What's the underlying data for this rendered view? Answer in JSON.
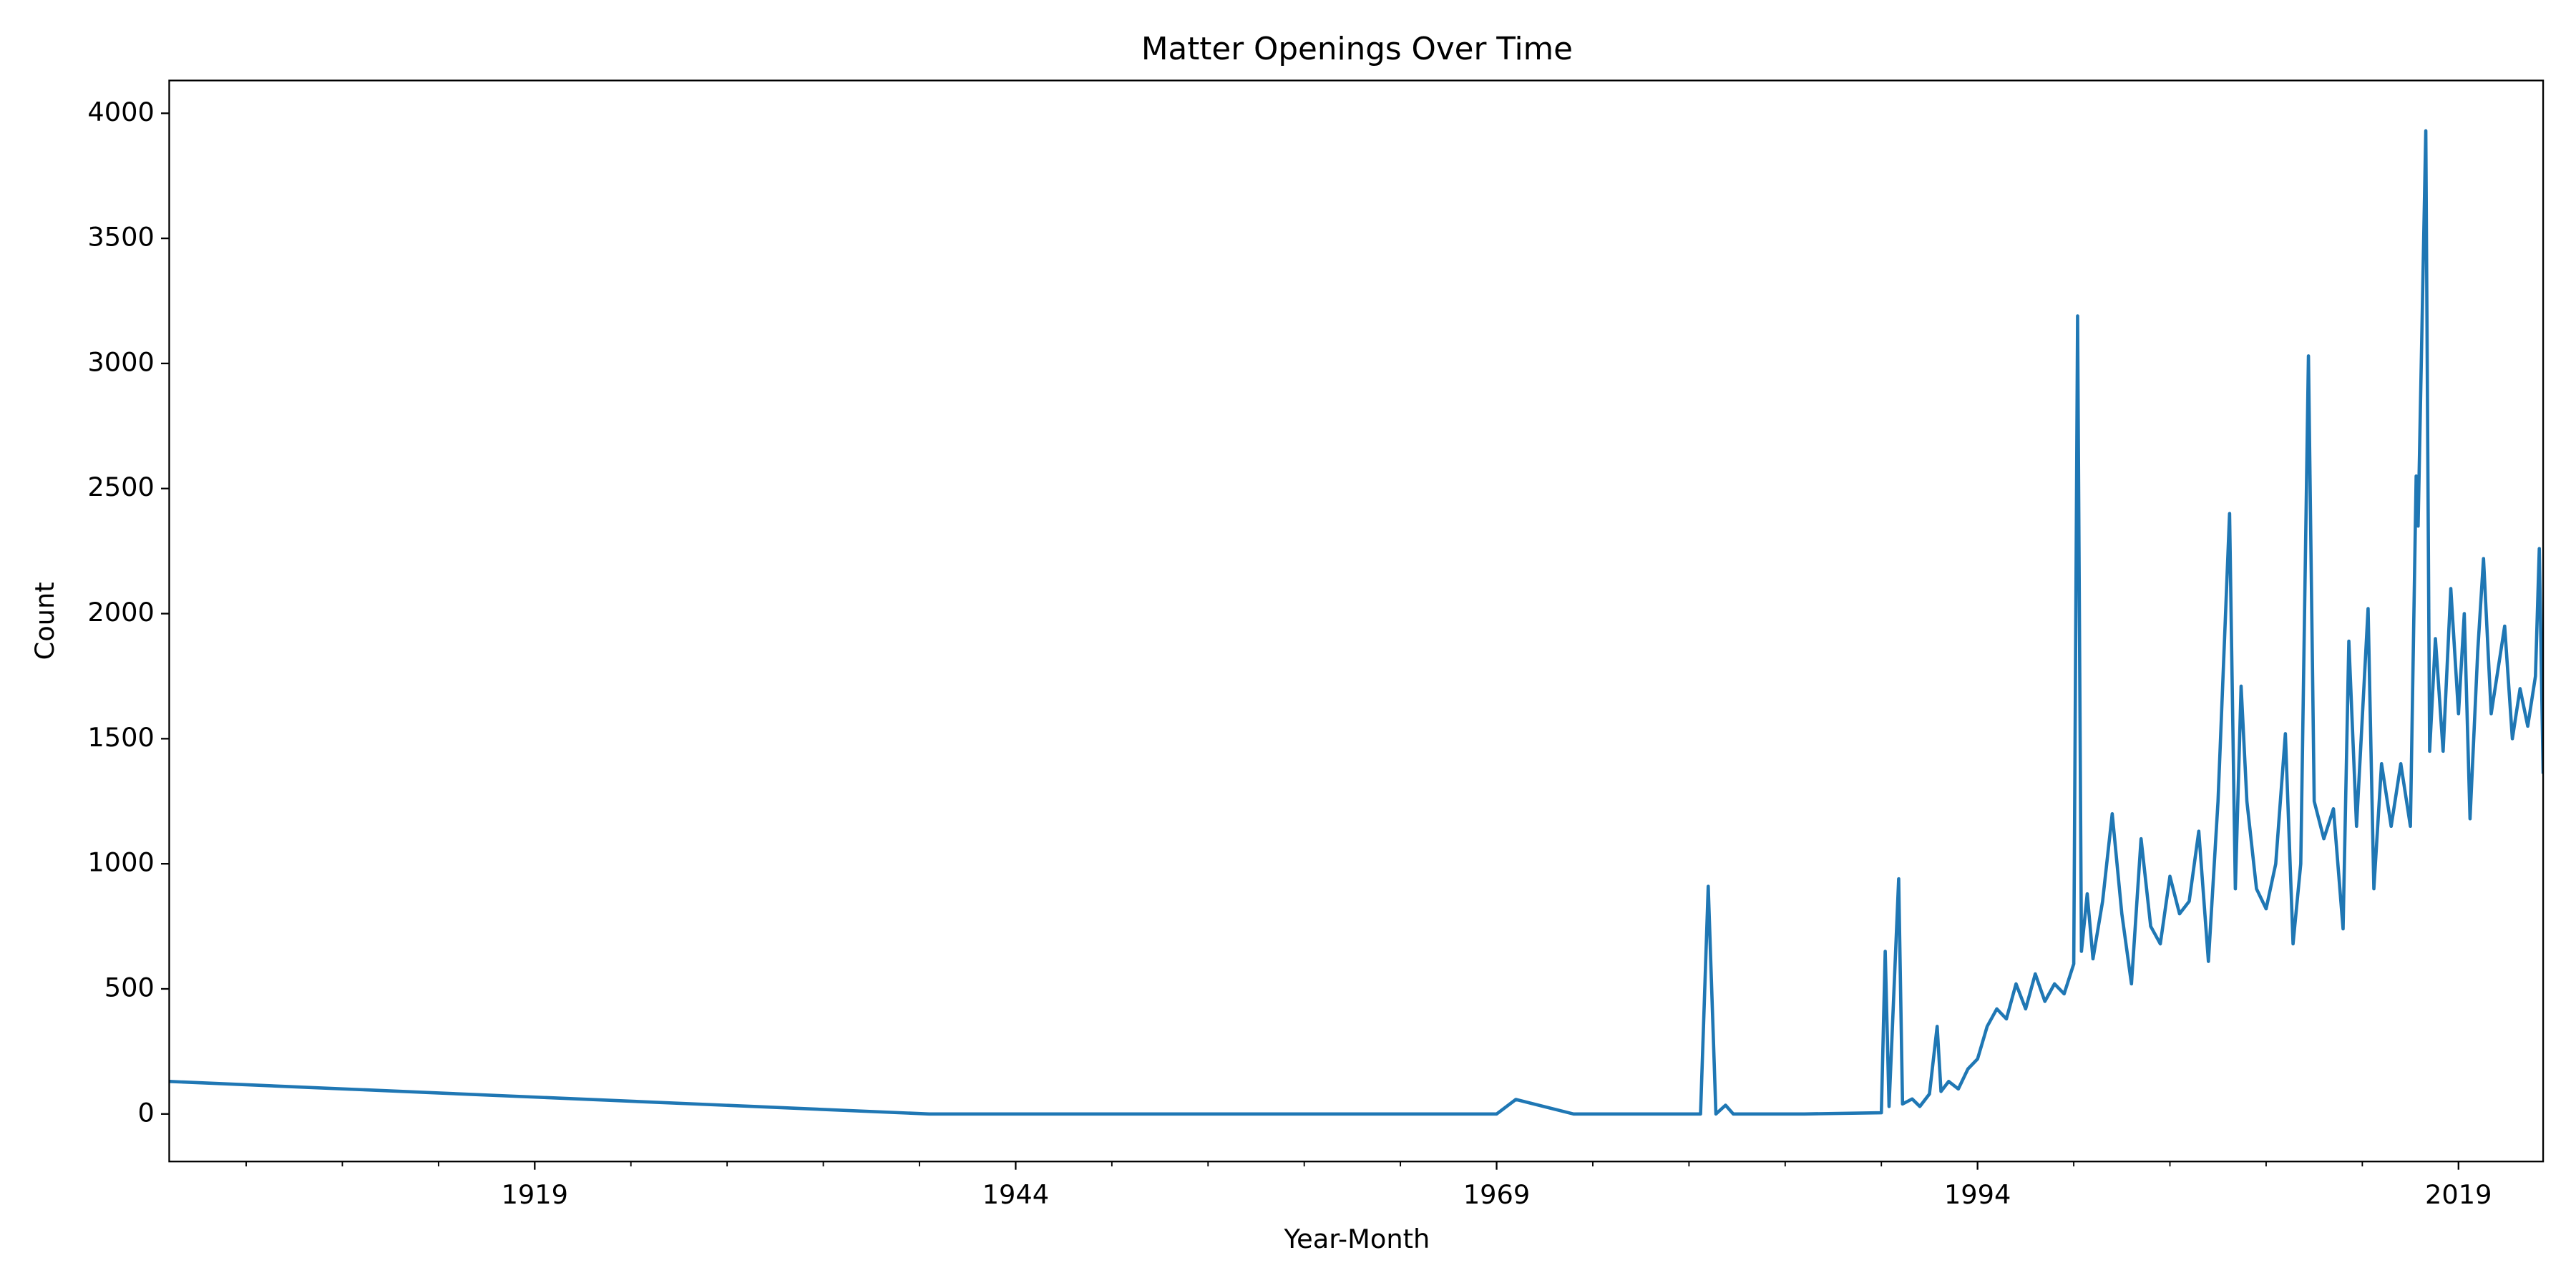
{
  "chart_data": {
    "type": "line",
    "title": "Matter Openings Over Time",
    "x_label": "Year-Month",
    "y_label": "Count",
    "grid": false,
    "xlim": [
      1900,
      2023.4
    ],
    "ylim": [
      -190,
      4131
    ],
    "xticks": [
      1919,
      1944,
      1969,
      1994,
      2019
    ],
    "xminorticks": [
      1904,
      1909,
      1914,
      1924,
      1929,
      1934,
      1939,
      1949,
      1954,
      1959,
      1964,
      1974,
      1979,
      1984,
      1989,
      1999,
      2004,
      2009,
      2014
    ],
    "yticks": [
      0,
      500,
      1000,
      1500,
      2000,
      2500,
      3000,
      3500,
      4000
    ],
    "x": [
      1900,
      1939.5,
      1969,
      1970,
      1973,
      1979.6,
      1980.0,
      1980.4,
      1980.9,
      1981.3,
      1985,
      1989,
      1989.2,
      1989.4,
      1989.9,
      1990.1,
      1990.6,
      1991,
      1991.5,
      1991.9,
      1992.1,
      1992.5,
      1993,
      1993.5,
      1994,
      1994.5,
      1995,
      1995.5,
      1996,
      1996.5,
      1997,
      1997.5,
      1998,
      1998.5,
      1999.0,
      1999.2,
      1999.4,
      1999.7,
      2000,
      2000.5,
      2001,
      2001.5,
      2002,
      2002.5,
      2003,
      2003.5,
      2004,
      2004.5,
      2005,
      2005.5,
      2006,
      2006.5,
      2007.1,
      2007.4,
      2007.7,
      2008,
      2008.5,
      2009,
      2009.5,
      2010,
      2010.4,
      2010.8,
      2011.2,
      2011.5,
      2012,
      2012.5,
      2013,
      2013.3,
      2013.7,
      2014.3,
      2014.6,
      2015,
      2015.5,
      2016,
      2016.5,
      2016.8,
      2016.9,
      2017.3,
      2017.5,
      2017.8,
      2018.2,
      2018.6,
      2019,
      2019.3,
      2019.6,
      2020,
      2020.3,
      2020.7,
      2021,
      2021.4,
      2021.8,
      2022.2,
      2022.6,
      2023.0,
      2023.2,
      2023.4
    ],
    "series": [
      {
        "name": "Count",
        "color": "#1f77b4",
        "values": [
          130,
          0,
          0,
          58,
          0,
          0,
          910,
          0,
          35,
          0,
          0,
          5,
          650,
          30,
          940,
          40,
          60,
          30,
          80,
          350,
          90,
          130,
          100,
          180,
          220,
          350,
          420,
          380,
          520,
          420,
          560,
          450,
          520,
          480,
          600,
          3190,
          650,
          880,
          620,
          850,
          1200,
          800,
          520,
          1100,
          750,
          680,
          950,
          800,
          850,
          1130,
          610,
          1250,
          2400,
          900,
          1710,
          1250,
          900,
          820,
          1000,
          1520,
          680,
          1000,
          3030,
          1250,
          1100,
          1220,
          740,
          1890,
          1150,
          2020,
          900,
          1400,
          1150,
          1400,
          1150,
          2550,
          2350,
          3930,
          1450,
          1900,
          1450,
          2100,
          1600,
          2000,
          1180,
          1850,
          2220,
          1600,
          1750,
          1950,
          1500,
          1700,
          1550,
          1750,
          2260,
          1360
        ]
      }
    ]
  }
}
